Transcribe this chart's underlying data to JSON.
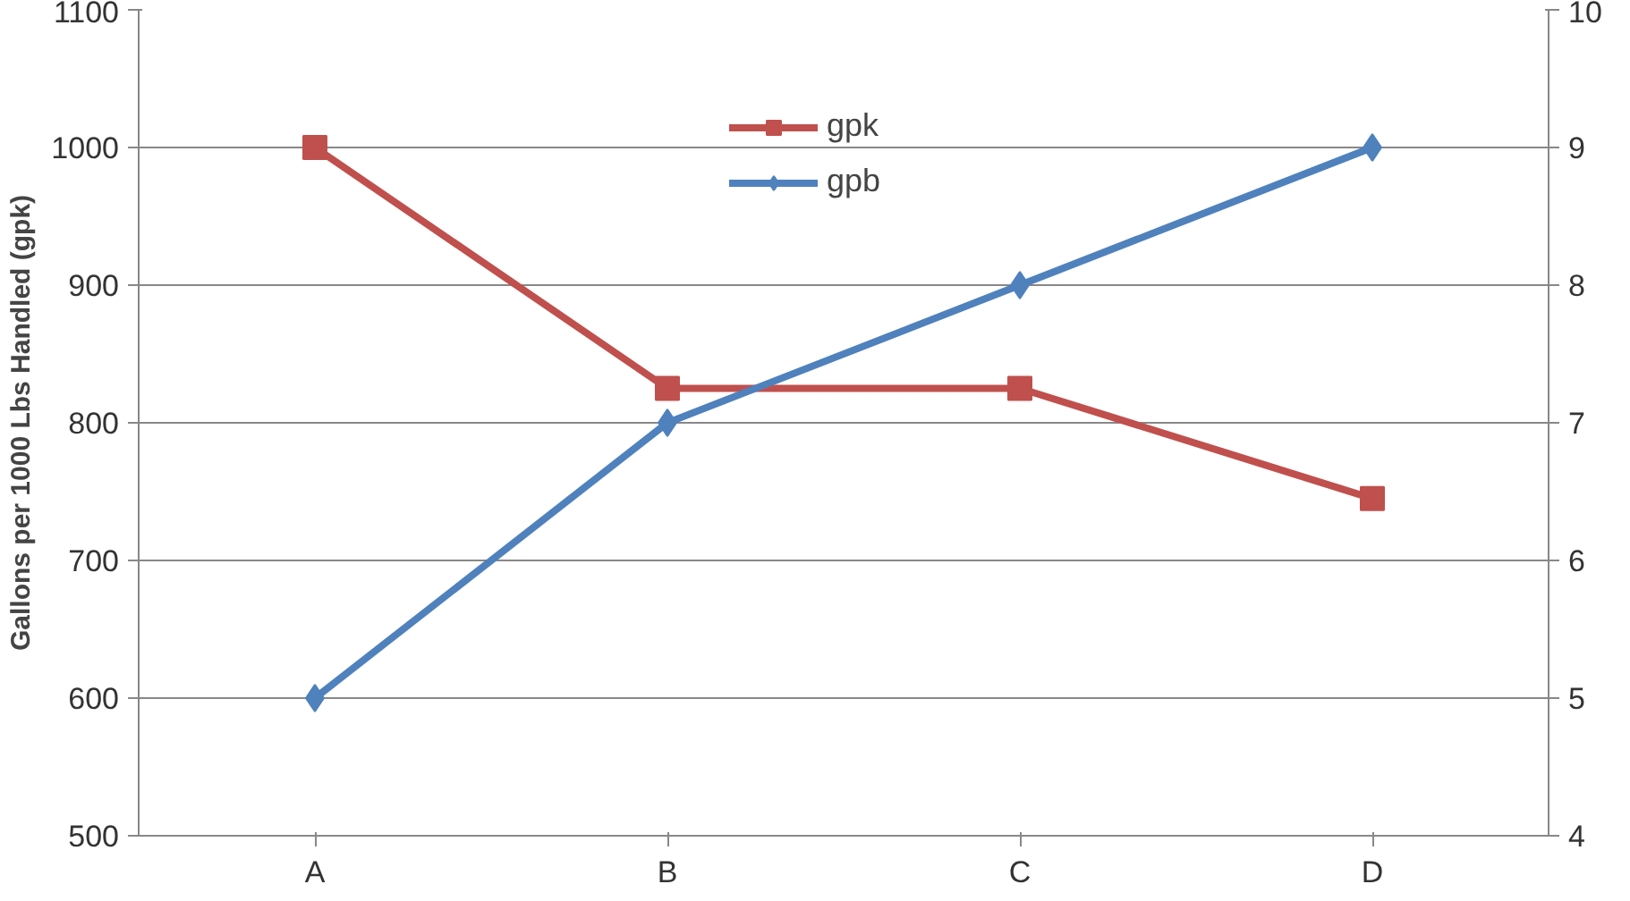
{
  "chart_data": {
    "type": "line",
    "ylabel": "Gallons per 1000 Lbs Handled (gpk)",
    "categories": [
      "A",
      "B",
      "C",
      "D"
    ],
    "series": [
      {
        "name": "gpk",
        "color": "#c0504d",
        "marker": "square",
        "values": [
          1000,
          825,
          825,
          745
        ]
      },
      {
        "name": "gpb",
        "color": "#4f81bd",
        "marker": "diamond",
        "axis": "y2",
        "values": [
          5,
          7,
          8,
          9
        ]
      }
    ],
    "ylim": [
      500,
      1100
    ],
    "yticks": [
      500,
      600,
      700,
      800,
      900,
      1000,
      1100
    ],
    "y2lim": [
      4,
      10
    ],
    "y2ticks": [
      4,
      5,
      6,
      7,
      8,
      9,
      10
    ],
    "grid": "y",
    "legend": "top",
    "line_style": "solid"
  }
}
